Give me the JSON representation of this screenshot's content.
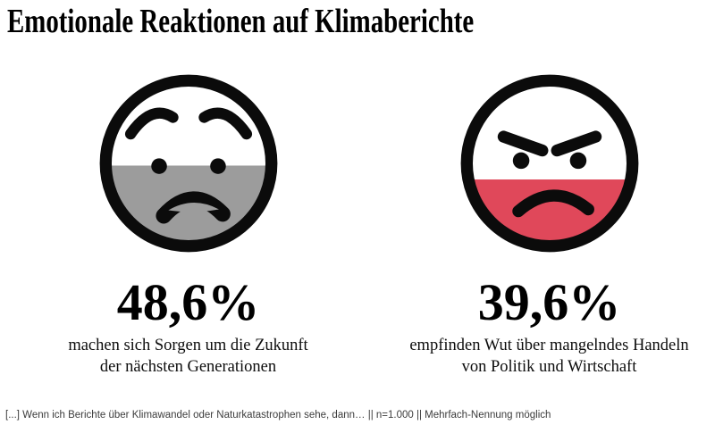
{
  "title": "Emotionale Reaktionen auf Klimaberichte",
  "items": [
    {
      "id": "worried",
      "emotion": "Sorge",
      "icon": "worried-face-icon",
      "value": 48.6,
      "value_label": "48,6%",
      "caption_lines": [
        "machen sich Sorgen um die Zukunft",
        "der nächsten Generationen"
      ],
      "fill_color": "#9c9c9c"
    },
    {
      "id": "angry",
      "emotion": "Wut",
      "icon": "angry-face-icon",
      "value": 39.6,
      "value_label": "39,6%",
      "caption_lines": [
        "empfinden Wut über mangelndes Handeln",
        "von Politik und Wirtschaft"
      ],
      "fill_color": "#e0485a"
    }
  ],
  "footer": {
    "note": "[...] Wenn ich Berichte über Klimawandel oder Naturkatastrophen sehe, dann… || n=1.000 || Mehrfach-Nennung möglich"
  },
  "colors": {
    "outline": "#0b0b0b",
    "worried_fill": "#9c9c9c",
    "angry_fill": "#e0485a",
    "title_text": "#000000",
    "note_text": "#3c3c3c",
    "background": "#ffffff"
  },
  "chart_data": {
    "type": "bar",
    "subtype": "pictogram-emoji-fill",
    "title": "Emotionale Reaktionen auf Klimaberichte",
    "categories": [
      "machen sich Sorgen um die Zukunft der nächsten Generationen",
      "empfinden Wut über mangelndes Handeln von Politik und Wirtschaft"
    ],
    "values": [
      48.6,
      39.6
    ],
    "value_labels": [
      "48,6%",
      "39,6%"
    ],
    "unit": "%",
    "ylim": [
      0,
      100
    ],
    "legend": "none",
    "annotation": "[...] Wenn ich Berichte über Klimawandel oder Naturkatastrophen sehe, dann… || n=1.000 || Mehrfach-Nennung möglich",
    "sample": "n=1.000",
    "note": "Mehrfach-Nennung möglich",
    "representation": "each emotion shown as emoji face filled from the bottom to its percentage level"
  }
}
